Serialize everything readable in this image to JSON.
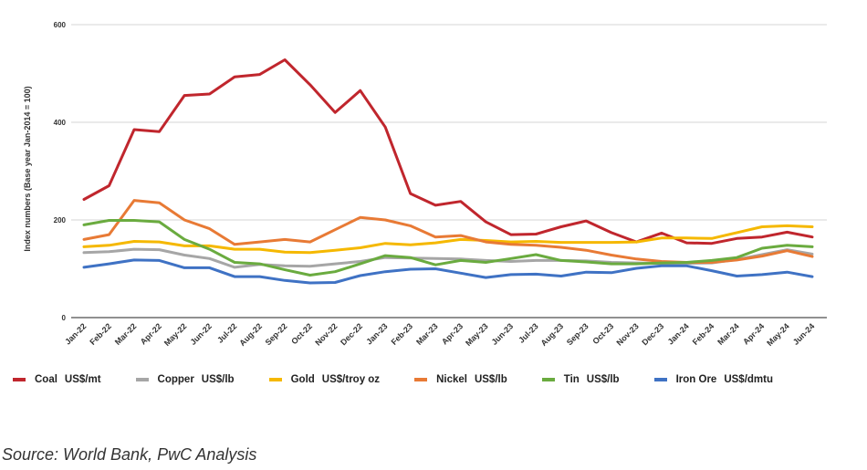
{
  "chart_data": {
    "type": "line",
    "title": "",
    "xlabel": "",
    "ylabel": "Index numbers (Base year Jan-2014 = 100)",
    "ylim": [
      0,
      600
    ],
    "yticks": [
      0,
      200,
      400,
      600
    ],
    "grid": true,
    "legend_position": "bottom",
    "categories": [
      "Jan-22",
      "Feb-22",
      "Mar-22",
      "Apr-22",
      "May-22",
      "Jun-22",
      "Jul-22",
      "Aug-22",
      "Sep-22",
      "Oct-22",
      "Nov-22",
      "Dec-22",
      "Jan-23",
      "Feb-23",
      "Mar-23",
      "Apr-23",
      "May-23",
      "Jun-23",
      "Jul-23",
      "Aug-23",
      "Sep-23",
      "Oct-23",
      "Nov-23",
      "Dec-23",
      "Jan-24",
      "Feb-24",
      "Mar-24",
      "Apr-24",
      "May-24",
      "Jun-24"
    ],
    "series": [
      {
        "name": "Coal",
        "unit": "US$/mt",
        "color": "#c0262d",
        "values": [
          242,
          270,
          385,
          381,
          455,
          458,
          493,
          498,
          528,
          477,
          420,
          465,
          390,
          254,
          230,
          238,
          196,
          170,
          171,
          186,
          198,
          174,
          155,
          173,
          153,
          152,
          162,
          165,
          175,
          165
        ]
      },
      {
        "name": "Copper",
        "unit": "US$/lb",
        "color": "#a6a6a6",
        "values": [
          133,
          135,
          140,
          139,
          128,
          121,
          103,
          109,
          106,
          105,
          110,
          115,
          123,
          122,
          121,
          120,
          117,
          115,
          117,
          117,
          116,
          113,
          112,
          111,
          111,
          112,
          119,
          129,
          139,
          130
        ]
      },
      {
        "name": "Gold",
        "unit": "US$/troy oz",
        "color": "#f5b800",
        "values": [
          145,
          148,
          156,
          155,
          147,
          147,
          140,
          140,
          134,
          133,
          138,
          143,
          152,
          149,
          153,
          160,
          158,
          155,
          156,
          154,
          154,
          154,
          155,
          163,
          163,
          162,
          174,
          186,
          188,
          186
        ]
      },
      {
        "name": "Nickel",
        "unit": "US$/lb",
        "color": "#e87a35",
        "values": [
          160,
          170,
          240,
          235,
          200,
          182,
          150,
          155,
          160,
          155,
          180,
          205,
          200,
          188,
          165,
          168,
          155,
          150,
          148,
          144,
          138,
          128,
          120,
          115,
          113,
          113,
          118,
          126,
          137,
          125
        ]
      },
      {
        "name": "Tin",
        "unit": "US$/lb",
        "color": "#6aab3f",
        "values": [
          190,
          199,
          199,
          196,
          160,
          140,
          113,
          110,
          98,
          87,
          94,
          110,
          127,
          123,
          108,
          117,
          113,
          121,
          129,
          117,
          114,
          110,
          110,
          112,
          113,
          117,
          123,
          142,
          148,
          145
        ]
      },
      {
        "name": "Iron Ore",
        "unit": "US$/dmtu",
        "color": "#3f72c4",
        "values": [
          103,
          110,
          118,
          117,
          102,
          102,
          84,
          84,
          76,
          71,
          72,
          86,
          94,
          99,
          100,
          91,
          82,
          88,
          89,
          85,
          93,
          92,
          101,
          106,
          106,
          96,
          85,
          88,
          93,
          84
        ]
      }
    ]
  },
  "source": "Source: World Bank, PwC Analysis"
}
